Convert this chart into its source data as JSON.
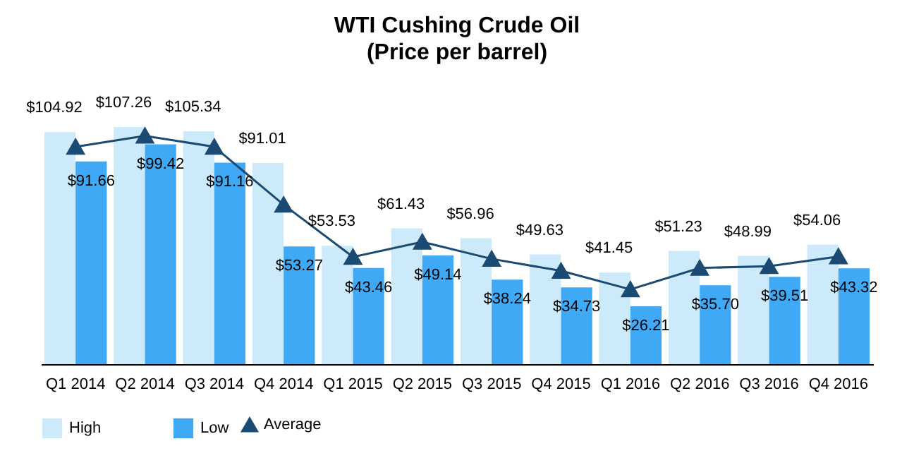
{
  "chart_data": {
    "type": "bar",
    "title": "WTI Cushing Crude Oil",
    "subtitle": "(Price per barrel)",
    "categories": [
      "Q1 2014",
      "Q2 2014",
      "Q3 2014",
      "Q4 2014",
      "Q1 2015",
      "Q2 2015",
      "Q3 2015",
      "Q4 2015",
      "Q1 2016",
      "Q2 2016",
      "Q3 2016",
      "Q4 2016"
    ],
    "series": [
      {
        "name": "High",
        "color": "#cdeafa",
        "values": [
          104.92,
          107.26,
          105.34,
          91.01,
          53.53,
          61.43,
          56.96,
          49.63,
          41.45,
          51.23,
          48.99,
          54.06
        ],
        "value_labels": [
          "$104.92",
          "$107.26",
          "$105.34",
          "$91.01",
          "$53.53",
          "$61.43",
          "$56.96",
          "$49.63",
          "$41.45",
          "$51.23",
          "$48.99",
          "$54.06"
        ]
      },
      {
        "name": "Low",
        "color": "#3fa9f5",
        "values": [
          91.66,
          99.42,
          91.16,
          53.27,
          43.46,
          49.14,
          38.24,
          34.73,
          26.21,
          35.7,
          39.51,
          43.32
        ],
        "value_labels": [
          "$91.66",
          "$99.42",
          "$91.16",
          "$53.27",
          "$43.46",
          "$49.14",
          "$38.24",
          "$34.73",
          "$26.21",
          "$35.70",
          "$39.51",
          "$43.32"
        ]
      },
      {
        "name": "Average",
        "type": "line",
        "color": "#1b4a72",
        "marker": "triangle",
        "values": [
          98.3,
          103.3,
          98.3,
          72.1,
          48.5,
          55.3,
          47.6,
          42.2,
          33.8,
          43.5,
          44.3,
          48.7
        ]
      }
    ],
    "tick_labels": "x",
    "legend": "bottom"
  }
}
